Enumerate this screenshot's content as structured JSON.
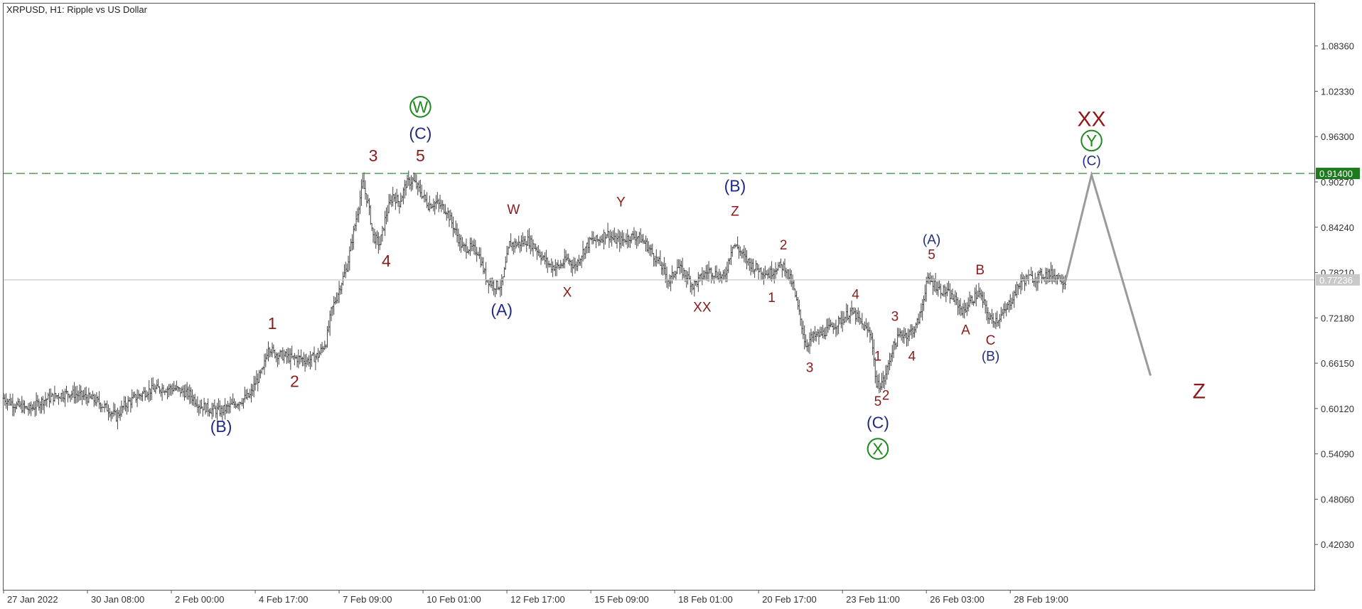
{
  "chart_data": {
    "type": "bar",
    "title": "XRPUSD, H1:  Ripple vs US Dollar",
    "ylim": [
      0.36,
      1.14
    ],
    "y_ticks": [
      "1.08360",
      "1.02330",
      "0.96300",
      "0.90270",
      "0.84240",
      "0.78210",
      "0.72180",
      "0.66150",
      "0.60120",
      "0.54090",
      "0.48060",
      "0.42030"
    ],
    "y_tick_values": [
      1.0836,
      1.0233,
      0.963,
      0.9027,
      0.8424,
      0.7821,
      0.7218,
      0.6615,
      0.6012,
      0.5409,
      0.4806,
      0.4203
    ],
    "x_ticks": [
      "27 Jan 2022",
      "30 Jan 08:00",
      "2 Feb 00:00",
      "4 Feb 17:00",
      "7 Feb 09:00",
      "10 Feb 01:00",
      "12 Feb 17:00",
      "15 Feb 09:00",
      "18 Feb 01:00",
      "20 Feb 17:00",
      "23 Feb 11:00",
      "26 Feb 03:00",
      "28 Feb 19:00"
    ],
    "x_tick_index": [
      0,
      64,
      128,
      192,
      256,
      320,
      384,
      448,
      512,
      576,
      640,
      704,
      768
    ],
    "level_line": {
      "value": 0.914,
      "label": "0.91400",
      "color": "#1e7a1e"
    },
    "current_price": {
      "value": 0.77236,
      "label": "0.77236",
      "color": "#c8c8c8"
    },
    "close_path": [
      [
        0,
        0.615
      ],
      [
        10,
        0.605
      ],
      [
        20,
        0.6
      ],
      [
        30,
        0.612
      ],
      [
        40,
        0.618
      ],
      [
        50,
        0.622
      ],
      [
        60,
        0.618
      ],
      [
        70,
        0.612
      ],
      [
        80,
        0.6
      ],
      [
        86,
        0.59
      ],
      [
        92,
        0.605
      ],
      [
        100,
        0.615
      ],
      [
        110,
        0.625
      ],
      [
        120,
        0.628
      ],
      [
        130,
        0.628
      ],
      [
        142,
        0.62
      ],
      [
        150,
        0.605
      ],
      [
        158,
        0.6
      ],
      [
        166,
        0.598
      ],
      [
        174,
        0.605
      ],
      [
        182,
        0.613
      ],
      [
        188,
        0.618
      ],
      [
        192,
        0.635
      ],
      [
        198,
        0.652
      ],
      [
        202,
        0.685
      ],
      [
        206,
        0.675
      ],
      [
        212,
        0.672
      ],
      [
        220,
        0.668
      ],
      [
        226,
        0.668
      ],
      [
        232,
        0.665
      ],
      [
        240,
        0.672
      ],
      [
        246,
        0.69
      ],
      [
        250,
        0.73
      ],
      [
        256,
        0.76
      ],
      [
        262,
        0.79
      ],
      [
        268,
        0.845
      ],
      [
        274,
        0.9
      ],
      [
        278,
        0.875
      ],
      [
        282,
        0.83
      ],
      [
        287,
        0.82
      ],
      [
        292,
        0.86
      ],
      [
        297,
        0.885
      ],
      [
        302,
        0.875
      ],
      [
        307,
        0.9
      ],
      [
        312,
        0.905
      ],
      [
        318,
        0.89
      ],
      [
        324,
        0.872
      ],
      [
        330,
        0.875
      ],
      [
        338,
        0.865
      ],
      [
        344,
        0.84
      ],
      [
        350,
        0.815
      ],
      [
        356,
        0.815
      ],
      [
        362,
        0.81
      ],
      [
        368,
        0.775
      ],
      [
        374,
        0.765
      ],
      [
        380,
        0.765
      ],
      [
        386,
        0.82
      ],
      [
        392,
        0.82
      ],
      [
        400,
        0.825
      ],
      [
        406,
        0.815
      ],
      [
        412,
        0.8
      ],
      [
        418,
        0.79
      ],
      [
        424,
        0.79
      ],
      [
        430,
        0.8
      ],
      [
        436,
        0.79
      ],
      [
        442,
        0.81
      ],
      [
        448,
        0.825
      ],
      [
        454,
        0.825
      ],
      [
        460,
        0.835
      ],
      [
        466,
        0.825
      ],
      [
        472,
        0.825
      ],
      [
        478,
        0.83
      ],
      [
        484,
        0.83
      ],
      [
        490,
        0.82
      ],
      [
        496,
        0.805
      ],
      [
        502,
        0.79
      ],
      [
        508,
        0.77
      ],
      [
        514,
        0.79
      ],
      [
        520,
        0.78
      ],
      [
        526,
        0.765
      ],
      [
        532,
        0.775
      ],
      [
        538,
        0.785
      ],
      [
        544,
        0.78
      ],
      [
        550,
        0.775
      ],
      [
        556,
        0.82
      ],
      [
        560,
        0.815
      ],
      [
        566,
        0.8
      ],
      [
        572,
        0.79
      ],
      [
        578,
        0.785
      ],
      [
        584,
        0.78
      ],
      [
        590,
        0.79
      ],
      [
        596,
        0.79
      ],
      [
        602,
        0.765
      ],
      [
        608,
        0.72
      ],
      [
        612,
        0.685
      ],
      [
        616,
        0.695
      ],
      [
        624,
        0.7
      ],
      [
        632,
        0.71
      ],
      [
        640,
        0.72
      ],
      [
        646,
        0.73
      ],
      [
        650,
        0.725
      ],
      [
        656,
        0.71
      ],
      [
        662,
        0.7
      ],
      [
        666,
        0.63
      ],
      [
        672,
        0.64
      ],
      [
        678,
        0.68
      ],
      [
        684,
        0.7
      ],
      [
        690,
        0.7
      ],
      [
        696,
        0.71
      ],
      [
        700,
        0.73
      ],
      [
        704,
        0.77
      ],
      [
        708,
        0.77
      ],
      [
        714,
        0.76
      ],
      [
        720,
        0.755
      ],
      [
        726,
        0.745
      ],
      [
        732,
        0.73
      ],
      [
        738,
        0.745
      ],
      [
        744,
        0.755
      ],
      [
        748,
        0.74
      ],
      [
        752,
        0.72
      ],
      [
        758,
        0.72
      ],
      [
        764,
        0.73
      ],
      [
        770,
        0.75
      ],
      [
        776,
        0.77
      ],
      [
        782,
        0.775
      ],
      [
        788,
        0.775
      ],
      [
        794,
        0.78
      ],
      [
        800,
        0.78
      ],
      [
        806,
        0.775
      ],
      [
        810,
        0.77
      ]
    ],
    "projection": [
      [
        810,
        0.77
      ],
      [
        830,
        0.912
      ],
      [
        875,
        0.645
      ]
    ],
    "wave_labels": [
      {
        "text": "W",
        "i": 318,
        "v": 0.995,
        "color": "#1e8a1e",
        "circled": true,
        "size": "large"
      },
      {
        "text": "(C)",
        "i": 318,
        "v": 0.96,
        "color": "#1f2a80",
        "size": "large"
      },
      {
        "text": "3",
        "i": 282,
        "v": 0.93,
        "color": "#8b1a1a",
        "size": "large"
      },
      {
        "text": "5",
        "i": 318,
        "v": 0.93,
        "color": "#8b1a1a",
        "size": "large"
      },
      {
        "text": "4",
        "i": 292,
        "v": 0.79,
        "color": "#8b1a1a",
        "size": "large"
      },
      {
        "text": "1",
        "i": 205,
        "v": 0.707,
        "color": "#8b1a1a",
        "size": "large"
      },
      {
        "text": "2",
        "i": 222,
        "v": 0.63,
        "color": "#8b1a1a",
        "size": "large"
      },
      {
        "text": "(B)",
        "i": 166,
        "v": 0.57,
        "color": "#1f2a80",
        "size": "large"
      },
      {
        "text": "W",
        "i": 389,
        "v": 0.86,
        "color": "#8b1a1a",
        "size": "medium"
      },
      {
        "text": "(A)",
        "i": 380,
        "v": 0.725,
        "color": "#1f2a80",
        "size": "large"
      },
      {
        "text": "X",
        "i": 430,
        "v": 0.75,
        "color": "#8b1a1a",
        "size": "medium"
      },
      {
        "text": "Y",
        "i": 471,
        "v": 0.87,
        "color": "#8b1a1a",
        "size": "medium"
      },
      {
        "text": "XX",
        "i": 533,
        "v": 0.73,
        "color": "#8b1a1a",
        "size": "medium"
      },
      {
        "text": "(B)",
        "i": 558,
        "v": 0.89,
        "color": "#1f2a80",
        "size": "large"
      },
      {
        "text": "Z",
        "i": 558,
        "v": 0.858,
        "color": "#8b1a1a",
        "size": "medium"
      },
      {
        "text": "2",
        "i": 595,
        "v": 0.813,
        "color": "#8b1a1a",
        "size": "medium"
      },
      {
        "text": "1",
        "i": 586,
        "v": 0.743,
        "color": "#8b1a1a",
        "size": "medium"
      },
      {
        "text": "4",
        "i": 650,
        "v": 0.747,
        "color": "#8b1a1a",
        "size": "medium"
      },
      {
        "text": "3",
        "i": 615,
        "v": 0.65,
        "color": "#8b1a1a",
        "size": "medium"
      },
      {
        "text": "3",
        "i": 680,
        "v": 0.718,
        "color": "#8b1a1a",
        "size": "medium"
      },
      {
        "text": "4",
        "i": 693,
        "v": 0.665,
        "color": "#8b1a1a",
        "size": "medium"
      },
      {
        "text": "1",
        "i": 667,
        "v": 0.665,
        "color": "#8b1a1a",
        "size": "medium"
      },
      {
        "text": "2",
        "i": 673,
        "v": 0.613,
        "color": "#8b1a1a",
        "size": "medium"
      },
      {
        "text": "5",
        "i": 667,
        "v": 0.605,
        "color": "#8b1a1a",
        "size": "medium"
      },
      {
        "text": "(C)",
        "i": 667,
        "v": 0.575,
        "color": "#1f2a80",
        "size": "large"
      },
      {
        "text": "X",
        "i": 667,
        "v": 0.54,
        "color": "#1e8a1e",
        "circled": true,
        "size": "large"
      },
      {
        "text": "(A)",
        "i": 708,
        "v": 0.82,
        "color": "#1f2a80",
        "size": "medium"
      },
      {
        "text": "5",
        "i": 708,
        "v": 0.8,
        "color": "#8b1a1a",
        "size": "medium"
      },
      {
        "text": "B",
        "i": 745,
        "v": 0.78,
        "color": "#8b1a1a",
        "size": "medium"
      },
      {
        "text": "A",
        "i": 734,
        "v": 0.7,
        "color": "#8b1a1a",
        "size": "medium"
      },
      {
        "text": "C",
        "i": 753,
        "v": 0.686,
        "color": "#8b1a1a",
        "size": "medium"
      },
      {
        "text": "(B)",
        "i": 753,
        "v": 0.665,
        "color": "#1f2a80",
        "size": "medium"
      },
      {
        "text": "XX",
        "i": 830,
        "v": 0.977,
        "color": "#8b1a1a",
        "size": "xlarge"
      },
      {
        "text": "Y",
        "i": 830,
        "v": 0.95,
        "color": "#1e8a1e",
        "circled": true,
        "size": "large"
      },
      {
        "text": "(C)",
        "i": 830,
        "v": 0.925,
        "color": "#1f2a80",
        "size": "medium"
      },
      {
        "text": "Z",
        "i": 912,
        "v": 0.615,
        "color": "#8b1a1a",
        "size": "xlarge"
      }
    ]
  }
}
